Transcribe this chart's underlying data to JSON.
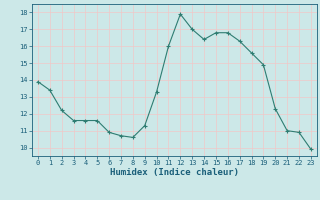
{
  "x": [
    0,
    1,
    2,
    3,
    4,
    5,
    6,
    7,
    8,
    9,
    10,
    11,
    12,
    13,
    14,
    15,
    16,
    17,
    18,
    19,
    20,
    21,
    22,
    23
  ],
  "y": [
    13.9,
    13.4,
    12.2,
    11.6,
    11.6,
    11.6,
    10.9,
    10.7,
    10.6,
    11.3,
    13.3,
    16.0,
    17.9,
    17.0,
    16.4,
    16.8,
    16.8,
    16.3,
    15.6,
    14.9,
    12.3,
    11.0,
    10.9,
    9.9
  ],
  "line_color": "#2e7d72",
  "marker": "+",
  "marker_size": 3,
  "marker_lw": 0.8,
  "bg_color": "#cce8e8",
  "grid_color_major": "#f0c8c8",
  "grid_color_minor": "#cce8e8",
  "xlabel": "Humidex (Indice chaleur)",
  "xlabel_color": "#1a5f7a",
  "tick_color": "#1a5f7a",
  "ylim": [
    9.5,
    18.5
  ],
  "xlim": [
    -0.5,
    23.5
  ],
  "yticks": [
    10,
    11,
    12,
    13,
    14,
    15,
    16,
    17,
    18
  ],
  "xticks": [
    0,
    1,
    2,
    3,
    4,
    5,
    6,
    7,
    8,
    9,
    10,
    11,
    12,
    13,
    14,
    15,
    16,
    17,
    18,
    19,
    20,
    21,
    22,
    23
  ],
  "tick_fontsize": 5,
  "xlabel_fontsize": 6.5,
  "line_width": 0.8
}
